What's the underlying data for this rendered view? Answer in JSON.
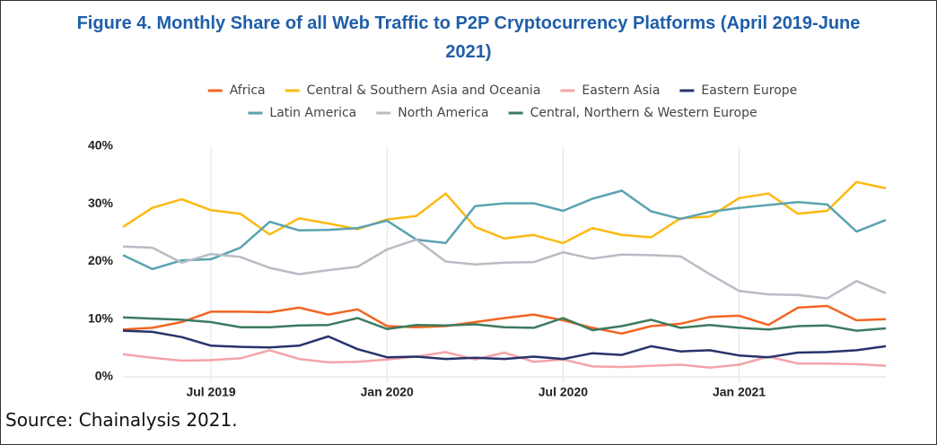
{
  "chart_data": {
    "type": "line",
    "title": "Figure 4. Monthly Share of all Web Traffic to P2P Cryptocurrency Platforms (April 2019-June 2021)",
    "source": "Source: Chainalysis 2021.",
    "categories": [
      null,
      null,
      null,
      "Jul 2019",
      null,
      null,
      null,
      null,
      null,
      "Jan 2020",
      null,
      null,
      null,
      null,
      null,
      "Jul 2020",
      null,
      null,
      null,
      null,
      null,
      "Jan 2021",
      null,
      null,
      null,
      null,
      null
    ],
    "ylim": [
      0,
      40
    ],
    "yticks": [
      {
        "value": 0,
        "label": "0%"
      },
      {
        "value": 10,
        "label": "10%"
      },
      {
        "value": 20,
        "label": "20%"
      },
      {
        "value": 30,
        "label": "30%"
      },
      {
        "value": 40,
        "label": "40%"
      }
    ],
    "series": [
      {
        "name": "Africa",
        "color": "#f26522",
        "values": [
          8.2,
          8.5,
          9.5,
          11.3,
          11.3,
          11.2,
          12,
          10.8,
          11.7,
          8.8,
          8.6,
          8.8,
          9.5,
          10.2,
          10.8,
          9.8,
          8.5,
          7.5,
          8.8,
          9.2,
          10.4,
          10.6,
          9.0,
          12,
          12.3,
          9.8,
          10
        ]
      },
      {
        "name": "Central & Southern Asia and Oceania",
        "color": "#fdb913",
        "values": [
          26,
          29.3,
          30.8,
          28.9,
          28.3,
          24.7,
          27.5,
          26.6,
          25.6,
          27.3,
          27.9,
          31.8,
          26,
          24,
          24.6,
          23.2,
          25.8,
          24.6,
          24.2,
          27.5,
          27.8,
          31,
          31.8,
          28.3,
          28.8,
          33.8,
          32.7
        ]
      },
      {
        "name": "Eastern Asia",
        "color": "#f4a3a8",
        "values": [
          3.9,
          3.3,
          2.8,
          2.9,
          3.2,
          4.6,
          3.1,
          2.5,
          2.6,
          3.0,
          3.5,
          4.3,
          3.0,
          4.2,
          2.6,
          3.0,
          1.8,
          1.7,
          1.9,
          2.1,
          1.6,
          2.1,
          3.5,
          2.3,
          2.3,
          2.2,
          1.9
        ]
      },
      {
        "name": "Eastern Europe",
        "color": "#28336b",
        "values": [
          8.0,
          7.8,
          6.9,
          5.4,
          5.2,
          5.1,
          5.4,
          7.0,
          4.8,
          3.4,
          3.5,
          3.1,
          3.3,
          3.1,
          3.5,
          3.1,
          4.1,
          3.8,
          5.3,
          4.4,
          4.6,
          3.7,
          3.4,
          4.2,
          4.3,
          4.6,
          5.3
        ]
      },
      {
        "name": "Latin America",
        "color": "#5ba3b0",
        "values": [
          21.1,
          18.7,
          20.2,
          20.4,
          22.4,
          26.9,
          25.4,
          25.5,
          25.8,
          27.1,
          23.8,
          23.2,
          29.6,
          30.1,
          30.1,
          28.8,
          30.9,
          32.3,
          28.7,
          27.4,
          28.6,
          29.3,
          29.8,
          30.3,
          29.9,
          25.2,
          27.2
        ]
      },
      {
        "name": "North America",
        "color": "#b8bcc4",
        "values": [
          22.6,
          22.4,
          19.8,
          21.3,
          20.8,
          18.9,
          17.8,
          18.5,
          19.1,
          22.1,
          23.8,
          20.0,
          19.5,
          19.8,
          19.9,
          21.6,
          20.5,
          21.2,
          21.1,
          20.9,
          17.8,
          14.9,
          14.3,
          14.2,
          13.6,
          16.6,
          14.5
        ]
      },
      {
        "name": "Central, Northern & Western Europe",
        "color": "#3d7a5e",
        "values": [
          10.3,
          10.1,
          9.9,
          9.5,
          8.6,
          8.6,
          8.9,
          9.0,
          10.2,
          8.3,
          9.0,
          8.9,
          9.1,
          8.6,
          8.5,
          10.2,
          8.1,
          8.8,
          9.9,
          8.5,
          9.0,
          8.5,
          8.2,
          8.8,
          8.9,
          8.0,
          8.4
        ]
      }
    ]
  }
}
